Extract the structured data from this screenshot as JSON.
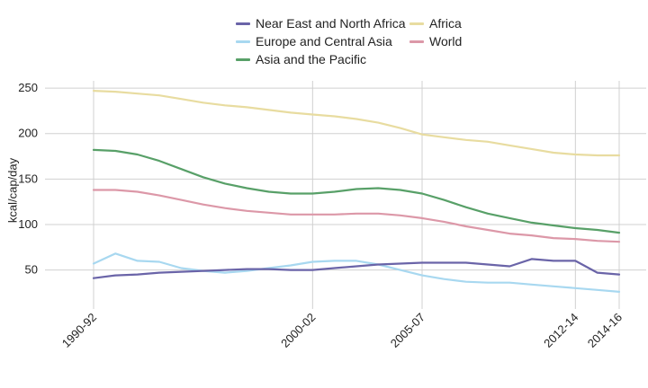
{
  "chart_data": {
    "type": "line",
    "title": "",
    "xlabel": "",
    "ylabel": "kcal/cap/day",
    "ylim": [
      15,
      258
    ],
    "yticks": [
      50,
      100,
      150,
      200,
      250
    ],
    "xrange": [
      1991,
      2015
    ],
    "xticks": [
      {
        "label": "1990-92",
        "x": 1991
      },
      {
        "label": "2000-02",
        "x": 2001
      },
      {
        "label": "2005-07",
        "x": 2006
      },
      {
        "label": "2012-14",
        "x": 2013
      },
      {
        "label": "2014-16",
        "x": 2015
      }
    ],
    "grid": true,
    "legend": "top",
    "x": [
      1991,
      1992,
      1993,
      1994,
      1995,
      1996,
      1997,
      1998,
      1999,
      2000,
      2001,
      2002,
      2003,
      2004,
      2005,
      2006,
      2007,
      2008,
      2009,
      2010,
      2011,
      2012,
      2013,
      2014,
      2015
    ],
    "series": [
      {
        "name": "Near East and North Africa",
        "color": "#6a64a8",
        "values": [
          41,
          44,
          45,
          47,
          48,
          49,
          50,
          51,
          51,
          50,
          50,
          52,
          54,
          56,
          57,
          58,
          58,
          58,
          56,
          54,
          62,
          60,
          60,
          47,
          45
        ]
      },
      {
        "name": "Europe and Central Asia",
        "color": "#a8d8f0",
        "values": [
          57,
          68,
          60,
          59,
          52,
          49,
          47,
          49,
          52,
          55,
          59,
          60,
          60,
          56,
          50,
          44,
          40,
          37,
          36,
          36,
          34,
          32,
          30,
          28,
          26
        ]
      },
      {
        "name": "Asia and the Pacific",
        "color": "#58a068",
        "values": [
          182,
          181,
          177,
          170,
          161,
          152,
          145,
          140,
          136,
          134,
          134,
          136,
          139,
          140,
          138,
          134,
          127,
          119,
          112,
          107,
          102,
          99,
          96,
          94,
          91
        ]
      },
      {
        "name": "Africa",
        "color": "#e8dca0",
        "values": [
          247,
          246,
          244,
          242,
          238,
          234,
          231,
          229,
          226,
          223,
          221,
          219,
          216,
          212,
          206,
          199,
          196,
          193,
          191,
          187,
          183,
          179,
          177,
          176,
          176
        ]
      },
      {
        "name": "World",
        "color": "#dc98a8",
        "values": [
          138,
          138,
          136,
          132,
          127,
          122,
          118,
          115,
          113,
          111,
          111,
          111,
          112,
          112,
          110,
          107,
          103,
          98,
          94,
          90,
          88,
          85,
          84,
          82,
          81
        ]
      }
    ]
  }
}
